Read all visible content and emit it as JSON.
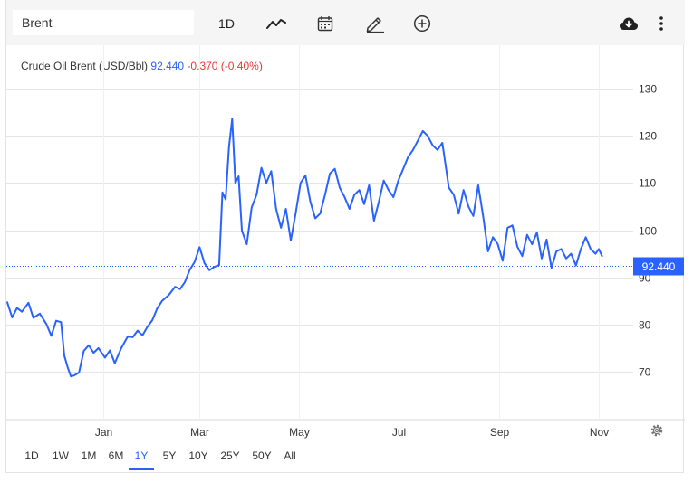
{
  "toolbar": {
    "symbol_value": "Brent",
    "interval_label": "1D",
    "chart_type_icon": "line-chart-icon",
    "calendar_icon": "calendar-icon",
    "draw_icon": "pencil-icon",
    "compare_icon": "add-circle-icon",
    "download_icon": "cloud-download-icon",
    "menu_icon": "more-vertical-icon"
  },
  "legend": {
    "name": "Crude Oil Brent (USD/Bbl)",
    "price": "92.440",
    "change": "-0.370 (-0.40%)"
  },
  "range_buttons": [
    "1D",
    "1W",
    "1M",
    "6M",
    "1Y",
    "5Y",
    "10Y",
    "25Y",
    "50Y",
    "All"
  ],
  "active_range": "1Y",
  "colors": {
    "line": "#2962ff",
    "negative": "#e53935",
    "grid": "#e6e6e6",
    "background": "#ffffff",
    "toolbar": "#f5f5f5"
  },
  "chart_data": {
    "type": "line",
    "title": "Crude Oil Brent (USD/Bbl)",
    "xlabel": "",
    "ylabel": "",
    "grid": true,
    "ylim": [
      60,
      138
    ],
    "yticks": [
      70,
      80,
      90,
      100,
      110,
      120,
      130
    ],
    "xticks": [
      {
        "label": "Jan",
        "x": "2022-01-01"
      },
      {
        "label": "Mar",
        "x": "2022-03-01"
      },
      {
        "label": "May",
        "x": "2022-05-01"
      },
      {
        "label": "Jul",
        "x": "2022-07-01"
      },
      {
        "label": "Sep",
        "x": "2022-09-01"
      },
      {
        "label": "Nov",
        "x": "2022-11-01"
      }
    ],
    "xlim": [
      "2021-11-03",
      "2022-11-11"
    ],
    "last_value": 92.44,
    "last_value_label": "92.440",
    "series": [
      {
        "values": [
          [
            "2021-11-03",
            84.7
          ],
          [
            "2021-11-06",
            81.5
          ],
          [
            "2021-11-09",
            83.5
          ],
          [
            "2021-11-12",
            82.7
          ],
          [
            "2021-11-16",
            84.6
          ],
          [
            "2021-11-19",
            81.4
          ],
          [
            "2021-11-23",
            82.3
          ],
          [
            "2021-11-27",
            80.1
          ],
          [
            "2021-11-30",
            77.6
          ],
          [
            "2021-12-03",
            80.8
          ],
          [
            "2021-12-06",
            80.5
          ],
          [
            "2021-12-08",
            73.4
          ],
          [
            "2021-12-10",
            71.0
          ],
          [
            "2021-12-12",
            69.0
          ],
          [
            "2021-12-14",
            69.2
          ],
          [
            "2021-12-17",
            69.8
          ],
          [
            "2021-12-20",
            74.4
          ],
          [
            "2021-12-23",
            75.6
          ],
          [
            "2021-12-26",
            74.0
          ],
          [
            "2021-12-29",
            75.0
          ],
          [
            "2022-01-02",
            73.0
          ],
          [
            "2022-01-05",
            74.5
          ],
          [
            "2022-01-08",
            71.8
          ],
          [
            "2022-01-12",
            75.0
          ],
          [
            "2022-01-16",
            77.5
          ],
          [
            "2022-01-19",
            77.3
          ],
          [
            "2022-01-22",
            78.7
          ],
          [
            "2022-01-25",
            77.7
          ],
          [
            "2022-01-28",
            79.5
          ],
          [
            "2022-01-31",
            80.9
          ],
          [
            "2022-02-03",
            83.4
          ],
          [
            "2022-02-06",
            85.0
          ],
          [
            "2022-02-10",
            86.2
          ],
          [
            "2022-02-14",
            88.0
          ],
          [
            "2022-02-17",
            87.5
          ],
          [
            "2022-02-20",
            89.0
          ],
          [
            "2022-02-23",
            91.6
          ],
          [
            "2022-02-26",
            93.3
          ],
          [
            "2022-03-01",
            96.4
          ],
          [
            "2022-03-04",
            93.0
          ],
          [
            "2022-03-07",
            91.5
          ],
          [
            "2022-03-10",
            92.2
          ],
          [
            "2022-03-13",
            92.6
          ],
          [
            "2022-03-15",
            108.0
          ],
          [
            "2022-03-17",
            106.5
          ],
          [
            "2022-03-19",
            117.5
          ],
          [
            "2022-03-21",
            123.6
          ],
          [
            "2022-03-23",
            110.0
          ],
          [
            "2022-03-25",
            111.4
          ],
          [
            "2022-03-27",
            99.9
          ],
          [
            "2022-03-30",
            97.0
          ],
          [
            "2022-04-02",
            104.8
          ],
          [
            "2022-04-05",
            107.5
          ],
          [
            "2022-04-08",
            113.2
          ],
          [
            "2022-04-11",
            110.0
          ],
          [
            "2022-04-14",
            112.5
          ],
          [
            "2022-04-17",
            104.5
          ],
          [
            "2022-04-20",
            100.5
          ],
          [
            "2022-04-23",
            104.5
          ],
          [
            "2022-04-26",
            97.8
          ],
          [
            "2022-04-29",
            103.6
          ],
          [
            "2022-05-02",
            110.0
          ],
          [
            "2022-05-05",
            111.6
          ],
          [
            "2022-05-08",
            106.0
          ],
          [
            "2022-05-11",
            102.5
          ],
          [
            "2022-05-14",
            103.5
          ],
          [
            "2022-05-17",
            107.5
          ],
          [
            "2022-05-20",
            112.0
          ],
          [
            "2022-05-23",
            113.0
          ],
          [
            "2022-05-26",
            109.0
          ],
          [
            "2022-05-29",
            107.0
          ],
          [
            "2022-06-01",
            104.5
          ],
          [
            "2022-06-04",
            107.5
          ],
          [
            "2022-06-07",
            108.5
          ],
          [
            "2022-06-10",
            105.5
          ],
          [
            "2022-06-13",
            109.5
          ],
          [
            "2022-06-16",
            102.0
          ],
          [
            "2022-06-19",
            106.0
          ],
          [
            "2022-06-22",
            110.5
          ],
          [
            "2022-06-25",
            108.5
          ],
          [
            "2022-06-28",
            107.0
          ],
          [
            "2022-07-01",
            110.5
          ],
          [
            "2022-07-04",
            113.0
          ],
          [
            "2022-07-07",
            115.5
          ],
          [
            "2022-07-10",
            117.0
          ],
          [
            "2022-07-13",
            119.0
          ],
          [
            "2022-07-16",
            121.0
          ],
          [
            "2022-07-19",
            120.0
          ],
          [
            "2022-07-22",
            118.0
          ],
          [
            "2022-07-25",
            117.0
          ],
          [
            "2022-07-28",
            118.5
          ],
          [
            "2022-08-01",
            109.0
          ],
          [
            "2022-08-04",
            107.5
          ],
          [
            "2022-08-07",
            103.5
          ],
          [
            "2022-08-10",
            108.5
          ],
          [
            "2022-08-13",
            105.0
          ],
          [
            "2022-08-16",
            103.0
          ],
          [
            "2022-08-19",
            109.5
          ],
          [
            "2022-08-22",
            103.0
          ],
          [
            "2022-08-25",
            95.5
          ],
          [
            "2022-08-28",
            98.5
          ],
          [
            "2022-08-31",
            97.0
          ],
          [
            "2022-09-03",
            93.5
          ],
          [
            "2022-09-06",
            100.5
          ],
          [
            "2022-09-09",
            101.0
          ],
          [
            "2022-09-12",
            96.5
          ],
          [
            "2022-09-15",
            94.5
          ],
          [
            "2022-09-18",
            99.0
          ],
          [
            "2022-09-21",
            97.0
          ],
          [
            "2022-09-24",
            99.5
          ],
          [
            "2022-09-27",
            94.0
          ],
          [
            "2022-09-30",
            98.0
          ],
          [
            "2022-10-03",
            92.0
          ],
          [
            "2022-10-06",
            95.5
          ],
          [
            "2022-10-09",
            96.0
          ],
          [
            "2022-10-12",
            94.0
          ],
          [
            "2022-10-15",
            95.0
          ],
          [
            "2022-10-18",
            92.5
          ],
          [
            "2022-10-21",
            96.0
          ],
          [
            "2022-10-24",
            98.5
          ],
          [
            "2022-10-27",
            96.0
          ],
          [
            "2022-10-30",
            95.0
          ],
          [
            "2022-11-01",
            96.0
          ],
          [
            "2022-11-03",
            94.5
          ]
        ]
      }
    ]
  }
}
